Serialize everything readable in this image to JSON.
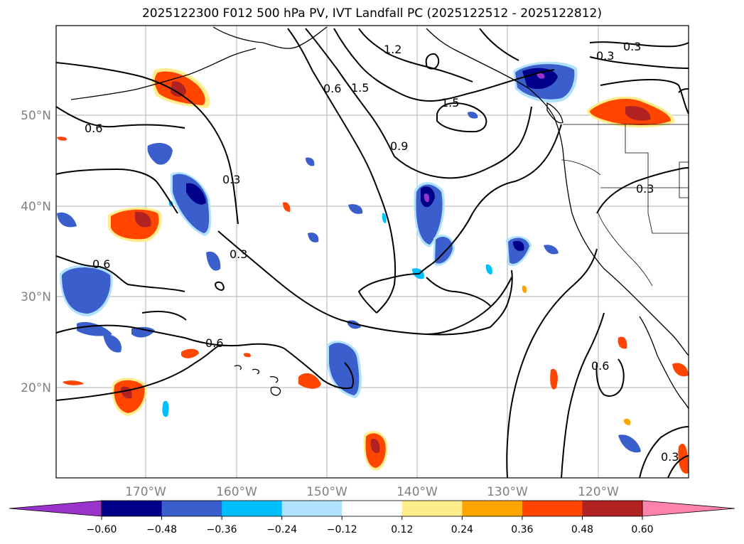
{
  "title": "2025122300 F012 500 hPa PV, IVT Landfall PC (2025122512 - 2025122812)",
  "map": {
    "lat_labels": [
      "50°N",
      "40°N",
      "30°N",
      "20°N"
    ],
    "lon_labels": [
      "170°W",
      "160°W",
      "150°W",
      "140°W",
      "130°W",
      "120°W"
    ],
    "contour_labels": [
      "1.2",
      "0.3",
      "0.3",
      "1.5",
      "0.6",
      "1.5",
      "0.6",
      "0.9",
      "0.3",
      "0.3",
      "0.3",
      "0.6",
      "0.6",
      "0.6",
      "0.3"
    ]
  },
  "colorbar": {
    "levels": [
      "−0.60",
      "−0.48",
      "−0.36",
      "−0.24",
      "−0.12",
      "0.12",
      "0.24",
      "0.36",
      "0.48",
      "0.60"
    ],
    "colors": [
      "#9933cc",
      "#00008b",
      "#3a5fcd",
      "#00bfff",
      "#b0e2ff",
      "#ffffff",
      "#ffec8b",
      "#ffa500",
      "#ff4500",
      "#b22222",
      "#ff82ab"
    ]
  },
  "colors": {
    "contour": "#000000",
    "grid": "#b0b0b0",
    "coast": "#000000"
  }
}
